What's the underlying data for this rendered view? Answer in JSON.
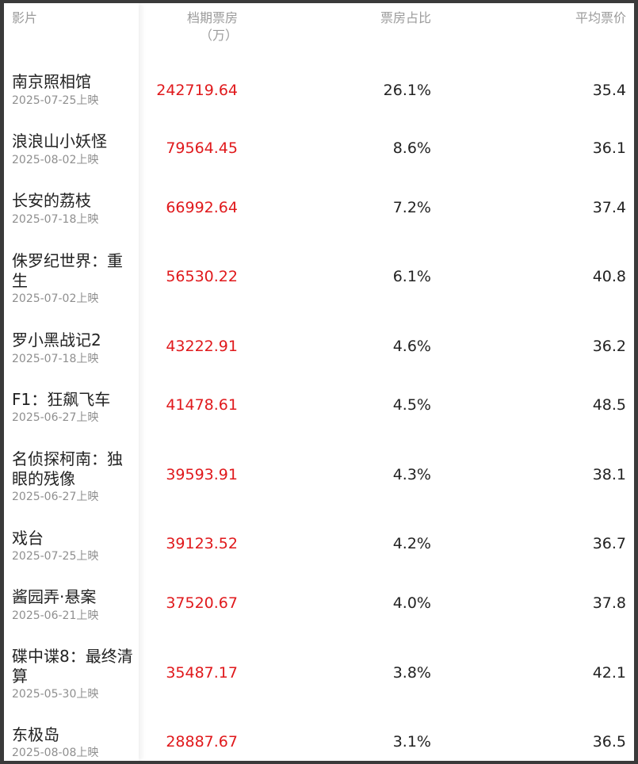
{
  "header": {
    "film": "影片",
    "box_office_line1": "档期票房",
    "box_office_line2": "（万）",
    "share": "票房占比",
    "avg_price": "平均票价"
  },
  "colors": {
    "box_office": "#e0191c",
    "header": "#9b9b9b",
    "date": "#8f8f8f"
  },
  "movies": [
    {
      "title": "南京照相馆",
      "date": "2025-07-25上映",
      "box_office": "242719.64",
      "share": "26.1%",
      "avg_price": "35.4"
    },
    {
      "title": "浪浪山小妖怪",
      "date": "2025-08-02上映",
      "box_office": "79564.45",
      "share": "8.6%",
      "avg_price": "36.1"
    },
    {
      "title": "长安的荔枝",
      "date": "2025-07-18上映",
      "box_office": "66992.64",
      "share": "7.2%",
      "avg_price": "37.4"
    },
    {
      "title": "侏罗纪世界：重生",
      "date": "2025-07-02上映",
      "box_office": "56530.22",
      "share": "6.1%",
      "avg_price": "40.8"
    },
    {
      "title": "罗小黑战记2",
      "date": "2025-07-18上映",
      "box_office": "43222.91",
      "share": "4.6%",
      "avg_price": "36.2"
    },
    {
      "title": "F1：狂飙飞车",
      "date": "2025-06-27上映",
      "box_office": "41478.61",
      "share": "4.5%",
      "avg_price": "48.5"
    },
    {
      "title": "名侦探柯南：独眼的残像",
      "date": "2025-06-27上映",
      "box_office": "39593.91",
      "share": "4.3%",
      "avg_price": "38.1"
    },
    {
      "title": "戏台",
      "date": "2025-07-25上映",
      "box_office": "39123.52",
      "share": "4.2%",
      "avg_price": "36.7"
    },
    {
      "title": "酱园弄·悬案",
      "date": "2025-06-21上映",
      "box_office": "37520.67",
      "share": "4.0%",
      "avg_price": "37.8"
    },
    {
      "title": "碟中谍8：最终清算",
      "date": "2025-05-30上映",
      "box_office": "35487.17",
      "share": "3.8%",
      "avg_price": "42.1"
    },
    {
      "title": "东极岛",
      "date": "2025-08-08上映",
      "box_office": "28887.67",
      "share": "3.1%",
      "avg_price": "36.5"
    }
  ]
}
